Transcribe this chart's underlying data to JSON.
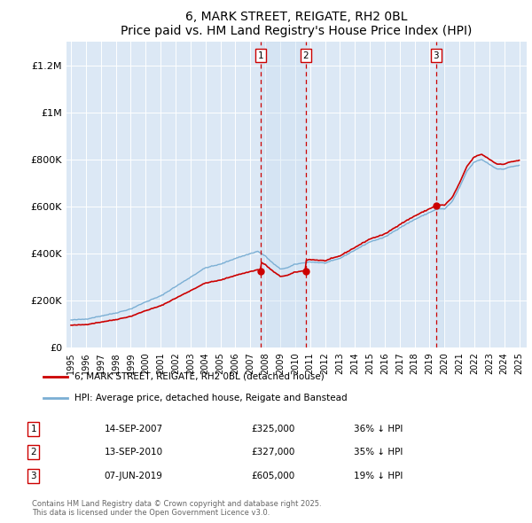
{
  "title": "6, MARK STREET, REIGATE, RH2 0BL",
  "subtitle": "Price paid vs. HM Land Registry's House Price Index (HPI)",
  "bg_color": "#dce8f5",
  "ylim": [
    0,
    1300000
  ],
  "yticks": [
    0,
    200000,
    400000,
    600000,
    800000,
    1000000,
    1200000
  ],
  "ytick_labels": [
    "£0",
    "£200K",
    "£400K",
    "£600K",
    "£800K",
    "£1M",
    "£1.2M"
  ],
  "hpi_color": "#7bafd4",
  "sale_color": "#cc0000",
  "vline_color": "#cc0000",
  "vbox_color": "#c8dff0",
  "transactions": [
    {
      "num": 1,
      "date": "14-SEP-2007",
      "year": 2007.71,
      "price": 325000,
      "pct": "36%",
      "dir": "↓"
    },
    {
      "num": 2,
      "date": "13-SEP-2010",
      "year": 2010.71,
      "price": 327000,
      "pct": "35%",
      "dir": "↓"
    },
    {
      "num": 3,
      "date": "07-JUN-2019",
      "year": 2019.44,
      "price": 605000,
      "pct": "19%",
      "dir": "↓"
    }
  ],
  "legend_sale_label": "6, MARK STREET, REIGATE, RH2 0BL (detached house)",
  "legend_hpi_label": "HPI: Average price, detached house, Reigate and Banstead",
  "footnote": "Contains HM Land Registry data © Crown copyright and database right 2025.\nThis data is licensed under the Open Government Licence v3.0."
}
